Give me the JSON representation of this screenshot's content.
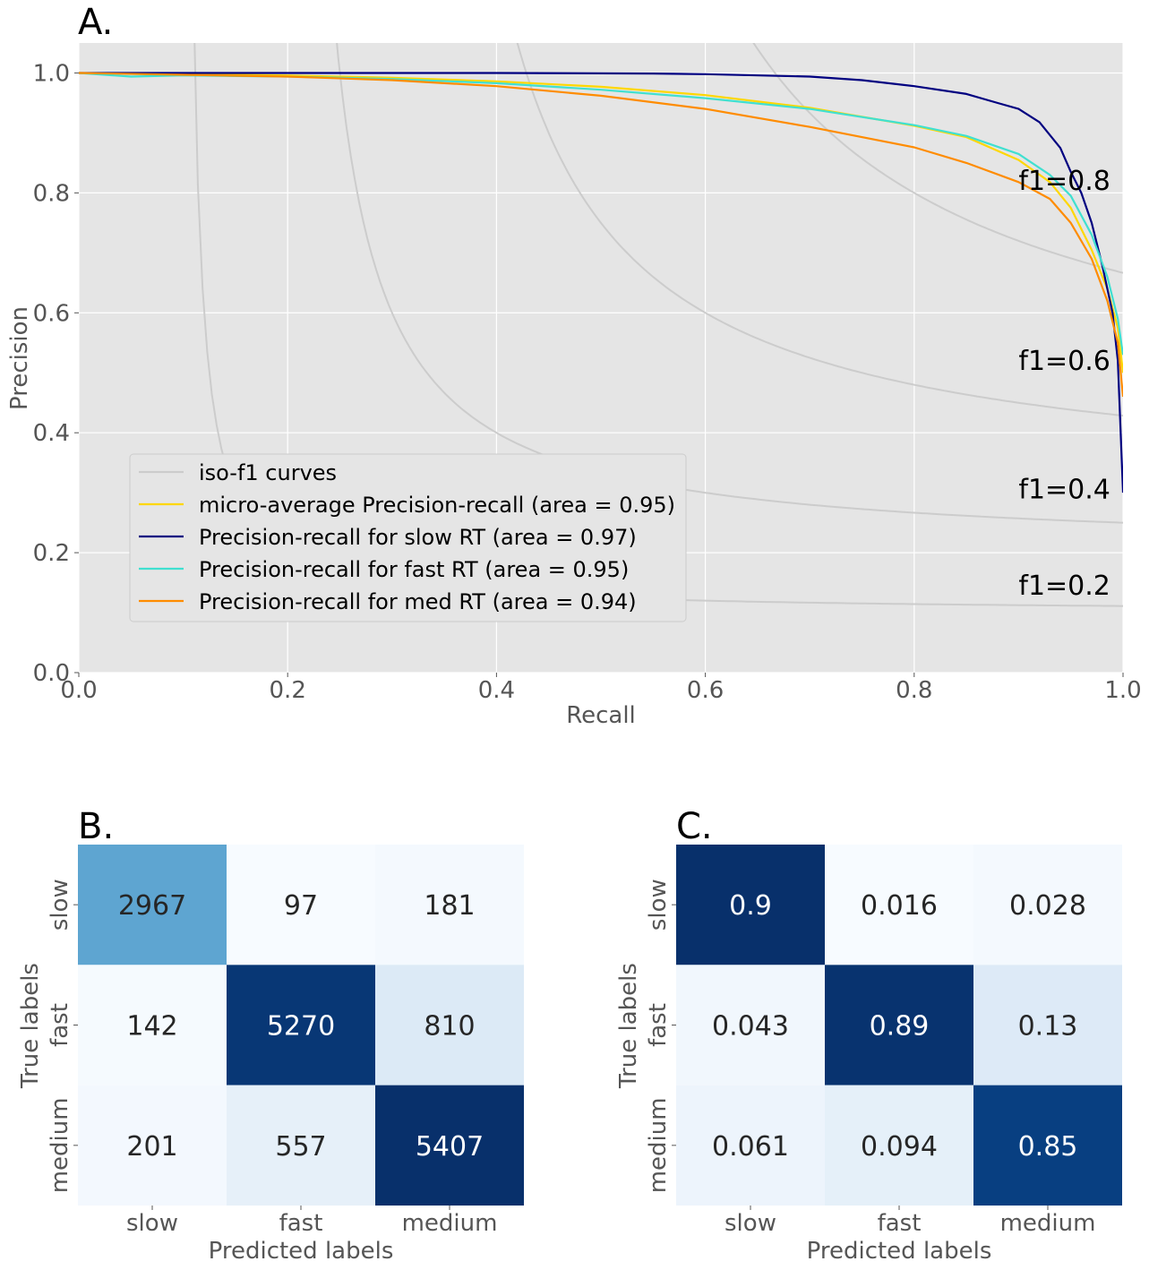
{
  "chart_data": [
    {
      "type": "line",
      "panel_label": "A.",
      "xlabel": "Recall",
      "ylabel": "Precision",
      "xlim": [
        0.0,
        1.0
      ],
      "ylim": [
        0.0,
        1.05
      ],
      "xticks": [
        "0.0",
        "0.2",
        "0.4",
        "0.6",
        "0.8",
        "1.0"
      ],
      "yticks": [
        "0.0",
        "0.2",
        "0.4",
        "0.6",
        "0.8",
        "1.0"
      ],
      "grid": true,
      "background": "#e5e5e5",
      "legend_position": "lower-left",
      "iso_f1": {
        "legend": "iso-f1 curves",
        "color": "#cccccc",
        "values": [
          0.2,
          0.4,
          0.6,
          0.8
        ],
        "labels": [
          "f1=0.2",
          "f1=0.4",
          "f1=0.6",
          "f1=0.8"
        ]
      },
      "series": [
        {
          "name": "micro-average Precision-recall (area = 0.95)",
          "color": "#ffd700",
          "points": [
            [
              0.0,
              1.0
            ],
            [
              0.1,
              0.998
            ],
            [
              0.2,
              0.996
            ],
            [
              0.3,
              0.992
            ],
            [
              0.4,
              0.986
            ],
            [
              0.5,
              0.977
            ],
            [
              0.6,
              0.963
            ],
            [
              0.7,
              0.942
            ],
            [
              0.8,
              0.912
            ],
            [
              0.85,
              0.893
            ],
            [
              0.9,
              0.855
            ],
            [
              0.93,
              0.818
            ],
            [
              0.95,
              0.775
            ],
            [
              0.97,
              0.705
            ],
            [
              0.985,
              0.64
            ],
            [
              0.995,
              0.575
            ],
            [
              1.0,
              0.5
            ]
          ]
        },
        {
          "name": "Precision-recall for slow RT (area = 0.97)",
          "color": "#000080",
          "points": [
            [
              0.0,
              1.0
            ],
            [
              0.2,
              1.0
            ],
            [
              0.4,
              1.0
            ],
            [
              0.55,
              0.999
            ],
            [
              0.6,
              0.998
            ],
            [
              0.7,
              0.994
            ],
            [
              0.75,
              0.988
            ],
            [
              0.8,
              0.978
            ],
            [
              0.85,
              0.965
            ],
            [
              0.88,
              0.95
            ],
            [
              0.9,
              0.94
            ],
            [
              0.92,
              0.918
            ],
            [
              0.94,
              0.875
            ],
            [
              0.95,
              0.835
            ],
            [
              0.96,
              0.8
            ],
            [
              0.97,
              0.75
            ],
            [
              0.98,
              0.68
            ],
            [
              0.99,
              0.6
            ],
            [
              0.995,
              0.52
            ],
            [
              1.0,
              0.3
            ]
          ]
        },
        {
          "name": "Precision-recall for fast RT (area = 0.95)",
          "color": "#40e0d0",
          "points": [
            [
              0.0,
              1.0
            ],
            [
              0.05,
              0.994
            ],
            [
              0.1,
              0.996
            ],
            [
              0.2,
              0.994
            ],
            [
              0.3,
              0.99
            ],
            [
              0.4,
              0.983
            ],
            [
              0.5,
              0.972
            ],
            [
              0.6,
              0.958
            ],
            [
              0.7,
              0.94
            ],
            [
              0.8,
              0.913
            ],
            [
              0.85,
              0.895
            ],
            [
              0.9,
              0.865
            ],
            [
              0.93,
              0.83
            ],
            [
              0.95,
              0.795
            ],
            [
              0.97,
              0.73
            ],
            [
              0.985,
              0.66
            ],
            [
              0.995,
              0.59
            ],
            [
              1.0,
              0.53
            ]
          ]
        },
        {
          "name": "Precision-recall for med RT (area = 0.94)",
          "color": "#ff8c00",
          "points": [
            [
              0.0,
              1.0
            ],
            [
              0.1,
              0.997
            ],
            [
              0.2,
              0.994
            ],
            [
              0.3,
              0.988
            ],
            [
              0.4,
              0.978
            ],
            [
              0.5,
              0.962
            ],
            [
              0.6,
              0.94
            ],
            [
              0.7,
              0.91
            ],
            [
              0.8,
              0.876
            ],
            [
              0.85,
              0.85
            ],
            [
              0.9,
              0.818
            ],
            [
              0.93,
              0.79
            ],
            [
              0.95,
              0.75
            ],
            [
              0.97,
              0.69
            ],
            [
              0.985,
              0.62
            ],
            [
              0.995,
              0.55
            ],
            [
              1.0,
              0.46
            ]
          ]
        }
      ]
    },
    {
      "type": "heatmap",
      "panel_label": "B.",
      "xlabel": "Predicted labels",
      "ylabel": "True labels",
      "x_categories": [
        "slow",
        "fast",
        "medium"
      ],
      "y_categories": [
        "slow",
        "fast",
        "medium"
      ],
      "values": [
        [
          2967,
          97,
          181
        ],
        [
          142,
          5270,
          810
        ],
        [
          201,
          557,
          5407
        ]
      ],
      "cell_text": [
        [
          "2967",
          "97",
          "181"
        ],
        [
          "142",
          "5270",
          "810"
        ],
        [
          "201",
          "557",
          "5407"
        ]
      ],
      "colormap": "Blues",
      "vmin": 97,
      "vmax": 5407
    },
    {
      "type": "heatmap",
      "panel_label": "C.",
      "xlabel": "Predicted labels",
      "ylabel": "True labels",
      "x_categories": [
        "slow",
        "fast",
        "medium"
      ],
      "y_categories": [
        "slow",
        "fast",
        "medium"
      ],
      "values": [
        [
          0.9,
          0.016,
          0.028
        ],
        [
          0.043,
          0.89,
          0.13
        ],
        [
          0.061,
          0.094,
          0.85
        ]
      ],
      "cell_text": [
        [
          "0.9",
          "0.016",
          "0.028"
        ],
        [
          "0.043",
          "0.89",
          "0.13"
        ],
        [
          "0.061",
          "0.094",
          "0.85"
        ]
      ],
      "colormap": "Blues",
      "vmin": 0.016,
      "vmax": 0.9
    }
  ]
}
